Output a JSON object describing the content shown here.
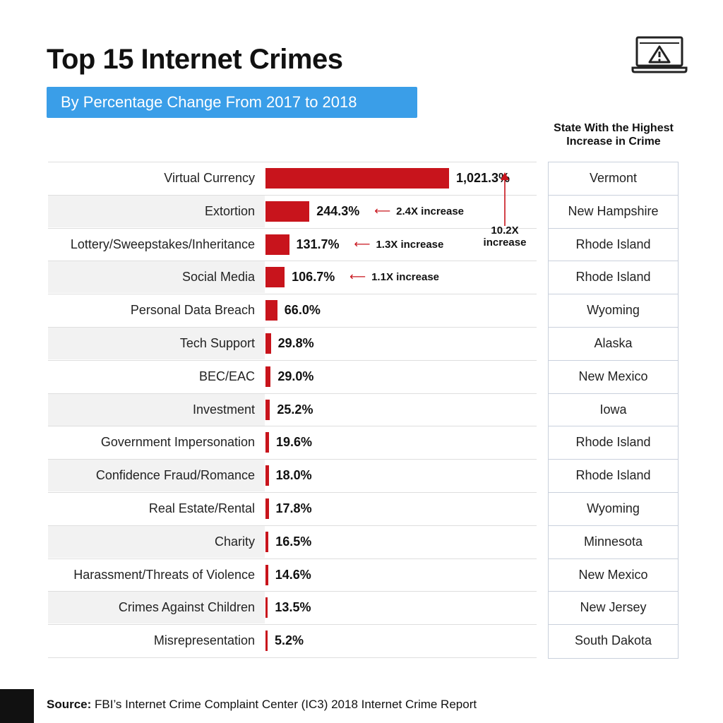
{
  "header": {
    "title": "Top 15 Internet Crimes",
    "subtitle": "By Percentage Change From 2017 to 2018",
    "icon": "laptop-warning-icon",
    "state_header_line1": "State With the Highest",
    "state_header_line2": "Increase in Crime"
  },
  "colors": {
    "bar": "#c8141c",
    "subtitle_bg": "#3a9ee8",
    "arrow": "#c8141c"
  },
  "chart_data": {
    "type": "bar",
    "orientation": "horizontal",
    "title": "Top 15 Internet Crimes",
    "subtitle": "By Percentage Change From 2017 to 2018",
    "categories": [
      "Virtual Currency",
      "Extortion",
      "Lottery/Sweepstakes/Inheritance",
      "Social Media",
      "Personal Data Breach",
      "Tech Support",
      "BEC/EAC",
      "Investment",
      "Government Impersonation",
      "Confidence Fraud/Romance",
      "Real Estate/Rental",
      "Charity",
      "Harassment/Threats of Violence",
      "Crimes Against Children",
      "Misrepresentation"
    ],
    "values": [
      1021.3,
      244.3,
      131.7,
      106.7,
      66.0,
      29.8,
      29.0,
      25.2,
      19.6,
      18.0,
      17.8,
      16.5,
      14.6,
      13.5,
      5.2
    ],
    "value_labels": [
      "1,021.3%",
      "244.3%",
      "131.7%",
      "106.7%",
      "66.0%",
      "29.8%",
      "29.0%",
      "25.2%",
      "19.6%",
      "18.0%",
      "17.8%",
      "16.5%",
      "14.6%",
      "13.5%",
      "5.2%"
    ],
    "xlim": [
      0,
      1021.3
    ],
    "annotations": [
      {
        "row": 1,
        "text": "2.4X increase"
      },
      {
        "row": 2,
        "text": "1.3X increase"
      },
      {
        "row": 3,
        "text": "1.1X increase"
      }
    ],
    "vertical_annotation": {
      "line1": "10.2X",
      "line2": "increase"
    },
    "states": [
      "Vermont",
      "New Hampshire",
      "Rhode Island",
      "Rhode Island",
      "Wyoming",
      "Alaska",
      "New Mexico",
      "Iowa",
      "Rhode Island",
      "Rhode Island",
      "Wyoming",
      "Minnesota",
      "New Mexico",
      "New Jersey",
      "South Dakota"
    ]
  },
  "footer": {
    "source_label": "Source:",
    "source_text": " FBI’s Internet Crime Complaint Center (IC3) 2018 Internet Crime Report"
  }
}
